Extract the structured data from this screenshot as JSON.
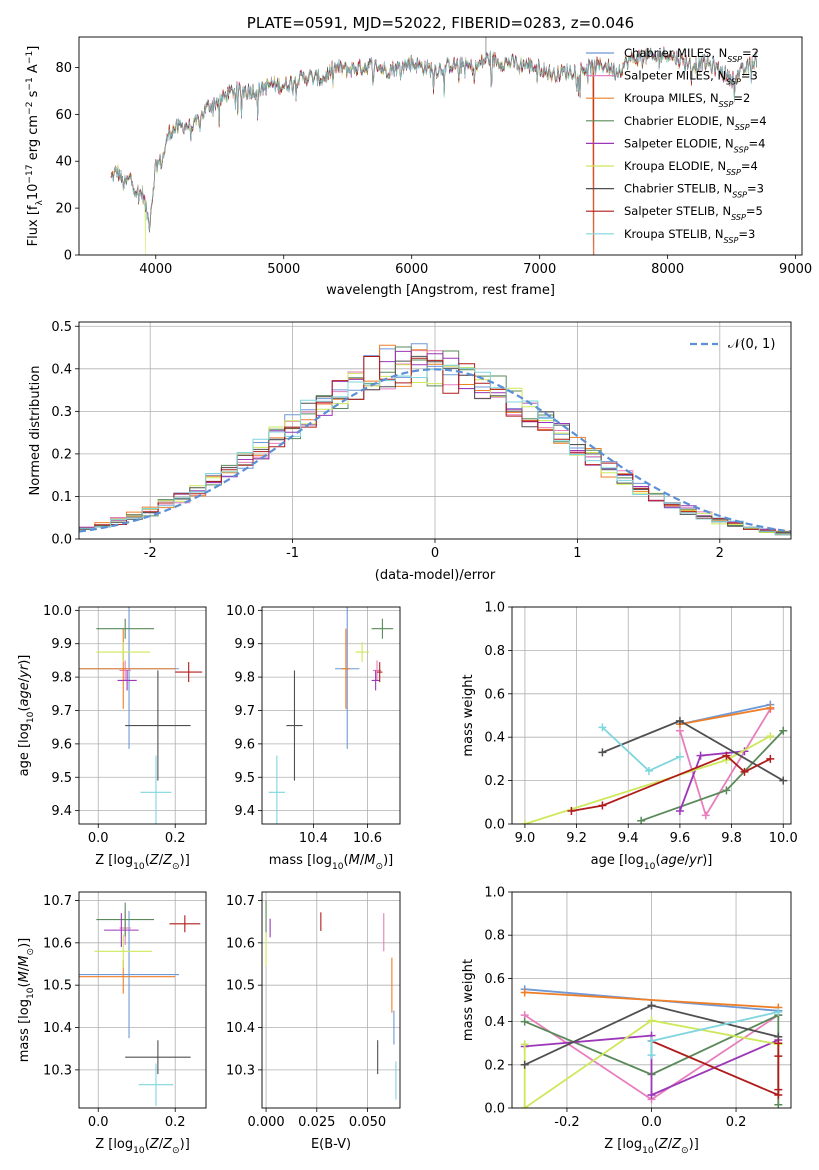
{
  "colors": {
    "Chabrier MILES": "#6f98d6",
    "Salpeter MILES": "#e87fbd",
    "Kroupa MILES": "#ee7f27",
    "Chabrier ELODIE": "#5a8a5a",
    "Salpeter ELODIE": "#9b37b8",
    "Kroupa ELODIE": "#cde85a",
    "Chabrier STELIB": "#505050",
    "Salpeter STELIB": "#b01c1c",
    "Kroupa STELIB": "#7fd6de",
    "gaussian": "#5b8fd6",
    "grid": "#b0b0b0"
  },
  "chart_data": [
    {
      "id": "spectrum",
      "type": "line",
      "title": "PLATE=0591, MJD=52022, FIBERID=0283, z=0.046",
      "xlabel": "wavelength [Angstrom, rest frame]",
      "ylabel": "Flux [f_λ 10^-17 erg cm^-2 s^-1 A^-1]",
      "xlim": [
        3400,
        9050
      ],
      "ylim": [
        0,
        93
      ],
      "xticks": [
        4000,
        5000,
        6000,
        7000,
        8000,
        9000
      ],
      "yticks": [
        0,
        20,
        40,
        60,
        80
      ],
      "grid": false,
      "legend_position": "top-right",
      "legend": [
        "Chabrier MILES, N_SSP=2",
        "Salpeter MILES, N_SSP=3",
        "Kroupa MILES, N_SSP=2",
        "Chabrier ELODIE, N_SSP=4",
        "Salpeter ELODIE, N_SSP=4",
        "Kroupa ELODIE, N_SSP=4",
        "Chabrier STELIB, N_SSP=3",
        "Salpeter STELIB, N_SSP=5",
        "Kroupa STELIB, N_SSP=3"
      ],
      "envelope": {
        "x": [
          3650,
          3700,
          3750,
          3800,
          3850,
          3900,
          3950,
          4000,
          4050,
          4100,
          4150,
          4200,
          4300,
          4400,
          4500,
          4600,
          4700,
          4800,
          4900,
          5000,
          5100,
          5200,
          5300,
          5400,
          5500,
          5600,
          5700,
          5800,
          5900,
          6000,
          6100,
          6200,
          6300,
          6400,
          6500,
          6600,
          6700,
          6800,
          6900,
          7000,
          7100,
          7200,
          7300,
          7400,
          7500,
          7600,
          7700,
          7800,
          7900,
          8000,
          8100,
          8200,
          8300,
          8400,
          8500,
          8600,
          8700
        ],
        "y": [
          33,
          36,
          30,
          33,
          27,
          26,
          13,
          39,
          40,
          52,
          54,
          55,
          55,
          63,
          66,
          70,
          70,
          70,
          73,
          72,
          75,
          76,
          75,
          80,
          79,
          80,
          81,
          79,
          80,
          82,
          80,
          79,
          81,
          81,
          80,
          84,
          82,
          82,
          81,
          80,
          77,
          78,
          79,
          80,
          81,
          78,
          83,
          85,
          84,
          86,
          83,
          81,
          82,
          79,
          75,
          79,
          84
        ]
      },
      "drops": [
        {
          "name": "Kroupa ELODIE",
          "x": 3920
        },
        {
          "name": "Kroupa ELODIE",
          "x": 6780
        },
        {
          "name": "Kroupa MILES",
          "x": 7420
        },
        {
          "name": "Salpeter STELIB",
          "x": 7425
        }
      ],
      "spike": {
        "x": 6580,
        "y": 93
      }
    },
    {
      "id": "residuals",
      "type": "area",
      "xlabel": "(data-model)/error",
      "ylabel": "Normed distribution",
      "xlim": [
        -2.5,
        2.5
      ],
      "ylim": [
        0,
        0.51
      ],
      "xticks": [
        -2,
        -1,
        0,
        1,
        2
      ],
      "yticks": [
        0.0,
        0.1,
        0.2,
        0.3,
        0.4,
        0.5
      ],
      "grid": true,
      "legend_position": "top-right",
      "legend": [
        "𝒩(0, 1)"
      ],
      "gaussian": {
        "mean": 0,
        "sigma": 1
      }
    },
    {
      "id": "age_vs_Z",
      "type": "scatter",
      "xlabel": "Z [log10(Z/Z☉)]",
      "ylabel": "age  [log10(age/yr)]",
      "xlim": [
        -0.05,
        0.28
      ],
      "ylim": [
        9.36,
        10.01
      ],
      "xticks": [
        0.0,
        0.2
      ],
      "yticks": [
        9.4,
        9.5,
        9.6,
        9.7,
        9.8,
        9.9,
        10.0
      ],
      "grid": true,
      "points": [
        {
          "name": "Chabrier MILES",
          "x": 0.08,
          "y": 9.825,
          "xerr": 0.13,
          "yerr": 0.24
        },
        {
          "name": "Salpeter MILES",
          "x": 0.07,
          "y": 9.82,
          "xerr": 0.015,
          "yerr": 0.03
        },
        {
          "name": "Kroupa MILES",
          "x": 0.065,
          "y": 9.825,
          "xerr": 0.135,
          "yerr": 0.12
        },
        {
          "name": "Chabrier ELODIE",
          "x": 0.07,
          "y": 9.945,
          "xerr": 0.075,
          "yerr": 0.03
        },
        {
          "name": "Salpeter ELODIE",
          "x": 0.075,
          "y": 9.79,
          "xerr": 0.025,
          "yerr": 0.03
        },
        {
          "name": "Kroupa ELODIE",
          "x": 0.065,
          "y": 9.875,
          "xerr": 0.07,
          "yerr": 0.03
        },
        {
          "name": "Chabrier STELIB",
          "x": 0.155,
          "y": 9.655,
          "xerr": 0.085,
          "yerr": 0.165
        },
        {
          "name": "Salpeter STELIB",
          "x": 0.235,
          "y": 9.815,
          "xerr": 0.035,
          "yerr": 0.03
        },
        {
          "name": "Kroupa STELIB",
          "x": 0.15,
          "y": 9.455,
          "xerr": 0.04,
          "yerr": 0.11
        }
      ]
    },
    {
      "id": "age_vs_mass",
      "type": "scatter",
      "xlabel": "mass [log10(M/M☉)]",
      "ylabel": "",
      "xlim": [
        10.21,
        10.72
      ],
      "ylim": [
        9.36,
        10.01
      ],
      "xticks": [
        10.4,
        10.6
      ],
      "yticks": [
        9.4,
        9.5,
        9.6,
        9.7,
        9.8,
        9.9,
        10.0
      ],
      "grid": true,
      "points": [
        {
          "name": "Chabrier MILES",
          "x": 10.525,
          "y": 9.825,
          "xerr": 0.045,
          "yerr": 0.24
        },
        {
          "name": "Salpeter MILES",
          "x": 10.635,
          "y": 9.82,
          "xerr": 0.015,
          "yerr": 0.03
        },
        {
          "name": "Kroupa MILES",
          "x": 10.52,
          "y": 9.825,
          "xerr": 0.015,
          "yerr": 0.12
        },
        {
          "name": "Chabrier ELODIE",
          "x": 10.655,
          "y": 9.945,
          "xerr": 0.04,
          "yerr": 0.03
        },
        {
          "name": "Salpeter ELODIE",
          "x": 10.63,
          "y": 9.79,
          "xerr": 0.015,
          "yerr": 0.03
        },
        {
          "name": "Kroupa ELODIE",
          "x": 10.58,
          "y": 9.875,
          "xerr": 0.025,
          "yerr": 0.03
        },
        {
          "name": "Chabrier STELIB",
          "x": 10.33,
          "y": 9.655,
          "xerr": 0.03,
          "yerr": 0.165
        },
        {
          "name": "Salpeter STELIB",
          "x": 10.645,
          "y": 9.815,
          "xerr": 0.01,
          "yerr": 0.03
        },
        {
          "name": "Kroupa STELIB",
          "x": 10.265,
          "y": 9.455,
          "xerr": 0.03,
          "yerr": 0.11
        }
      ]
    },
    {
      "id": "massweight_vs_age",
      "type": "line",
      "xlabel": "age  [log10(age/yr)]",
      "ylabel": "mass weight",
      "xlim": [
        8.95,
        10.03
      ],
      "ylim": [
        0,
        1.0
      ],
      "xticks": [
        9.0,
        9.2,
        9.4,
        9.6,
        9.8,
        10.0
      ],
      "yticks": [
        0.0,
        0.2,
        0.4,
        0.6,
        0.8,
        1.0
      ],
      "grid": true,
      "series": [
        {
          "name": "Chabrier MILES",
          "x": [
            9.6,
            9.95
          ],
          "y": [
            0.46,
            0.55
          ]
        },
        {
          "name": "Salpeter MILES",
          "x": [
            9.6,
            9.7,
            9.95
          ],
          "y": [
            0.43,
            0.04,
            0.53
          ]
        },
        {
          "name": "Kroupa MILES",
          "x": [
            9.6,
            9.95
          ],
          "y": [
            0.46,
            0.535
          ]
        },
        {
          "name": "Chabrier ELODIE",
          "x": [
            9.45,
            9.78,
            10.0
          ],
          "y": [
            0.015,
            0.155,
            0.43
          ]
        },
        {
          "name": "Salpeter ELODIE",
          "x": [
            9.6,
            9.68,
            9.85
          ],
          "y": [
            0.06,
            0.315,
            0.335
          ]
        },
        {
          "name": "Kroupa ELODIE",
          "x": [
            9.0,
            9.78,
            9.95
          ],
          "y": [
            0.0,
            0.295,
            0.405
          ]
        },
        {
          "name": "Chabrier STELIB",
          "x": [
            9.3,
            9.6,
            10.0
          ],
          "y": [
            0.33,
            0.475,
            0.2
          ]
        },
        {
          "name": "Salpeter STELIB",
          "x": [
            9.18,
            9.3,
            9.78,
            9.85,
            9.95
          ],
          "y": [
            0.06,
            0.085,
            0.315,
            0.24,
            0.3
          ]
        },
        {
          "name": "Kroupa STELIB",
          "x": [
            9.3,
            9.48,
            9.6
          ],
          "y": [
            0.445,
            0.245,
            0.31
          ]
        }
      ]
    },
    {
      "id": "mass_vs_Z",
      "type": "scatter",
      "xlabel": "Z [log10(Z/Z☉)]",
      "ylabel": "mass [log10(M/M☉)]",
      "xlim": [
        -0.05,
        0.28
      ],
      "ylim": [
        10.21,
        10.72
      ],
      "xticks": [
        0.0,
        0.2
      ],
      "yticks": [
        10.3,
        10.4,
        10.5,
        10.6,
        10.7
      ],
      "grid": true,
      "points": [
        {
          "name": "Chabrier MILES",
          "x": 0.08,
          "y": 10.525,
          "xerr": 0.13,
          "yerr": 0.15
        },
        {
          "name": "Salpeter MILES",
          "x": 0.07,
          "y": 10.635,
          "xerr": 0.015,
          "yerr": 0.04
        },
        {
          "name": "Kroupa MILES",
          "x": 0.065,
          "y": 10.52,
          "xerr": 0.135,
          "yerr": 0.04
        },
        {
          "name": "Chabrier ELODIE",
          "x": 0.07,
          "y": 10.655,
          "xerr": 0.075,
          "yerr": 0.04
        },
        {
          "name": "Salpeter ELODIE",
          "x": 0.06,
          "y": 10.63,
          "xerr": 0.045,
          "yerr": 0.04
        },
        {
          "name": "Kroupa ELODIE",
          "x": 0.065,
          "y": 10.58,
          "xerr": 0.075,
          "yerr": 0.04
        },
        {
          "name": "Chabrier STELIB",
          "x": 0.155,
          "y": 10.33,
          "xerr": 0.085,
          "yerr": 0.04
        },
        {
          "name": "Salpeter STELIB",
          "x": 0.225,
          "y": 10.645,
          "xerr": 0.04,
          "yerr": 0.02
        },
        {
          "name": "Kroupa STELIB",
          "x": 0.15,
          "y": 10.265,
          "xerr": 0.045,
          "yerr": 0.05
        }
      ]
    },
    {
      "id": "mass_vs_ebv",
      "type": "scatter",
      "xlabel": "E(B-V)",
      "ylabel": "",
      "xlim": [
        -0.002,
        0.066
      ],
      "ylim": [
        10.21,
        10.72
      ],
      "xticks": [
        0.0,
        0.025,
        0.05
      ],
      "yticks": [
        10.3,
        10.4,
        10.5,
        10.6,
        10.7
      ],
      "grid": true,
      "points": [
        {
          "name": "Chabrier MILES",
          "x": 0.063,
          "y": 10.4,
          "xerr": 0,
          "yerr": 0.04
        },
        {
          "name": "Salpeter MILES",
          "x": 0.058,
          "y": 10.625,
          "xerr": 0,
          "yerr": 0.045
        },
        {
          "name": "Kroupa MILES",
          "x": 0.062,
          "y": 10.5,
          "xerr": 0,
          "yerr": 0.065
        },
        {
          "name": "Chabrier ELODIE",
          "x": 0.0,
          "y": 10.66,
          "xerr": 0,
          "yerr": 0.04
        },
        {
          "name": "Salpeter ELODIE",
          "x": 0.002,
          "y": 10.635,
          "xerr": 0,
          "yerr": 0.022
        },
        {
          "name": "Kroupa ELODIE",
          "x": 0.0,
          "y": 10.585,
          "xerr": 0,
          "yerr": 0.04
        },
        {
          "name": "Chabrier STELIB",
          "x": 0.055,
          "y": 10.33,
          "xerr": 0,
          "yerr": 0.04
        },
        {
          "name": "Salpeter STELIB",
          "x": 0.027,
          "y": 10.65,
          "xerr": 0,
          "yerr": 0.022
        },
        {
          "name": "Kroupa STELIB",
          "x": 0.064,
          "y": 10.275,
          "xerr": 0,
          "yerr": 0.045
        }
      ]
    },
    {
      "id": "massweight_vs_Z",
      "type": "line",
      "xlabel": "Z [log10(Z/Z☉)]",
      "ylabel": "mass weight",
      "xlim": [
        -0.33,
        0.33
      ],
      "ylim": [
        0,
        1.0
      ],
      "xticks": [
        -0.2,
        0.0,
        0.2
      ],
      "yticks": [
        0.0,
        0.2,
        0.4,
        0.6,
        0.8,
        1.0
      ],
      "grid": true,
      "series": [
        {
          "name": "Chabrier MILES",
          "x": [
            -0.3,
            0.3
          ],
          "y": [
            0.55,
            0.45
          ]
        },
        {
          "name": "Salpeter MILES",
          "x": [
            -0.3,
            0.0,
            0.3
          ],
          "y": [
            0.43,
            0.04,
            0.43
          ]
        },
        {
          "name": "Kroupa MILES",
          "x": [
            -0.3,
            0.3
          ],
          "y": [
            0.535,
            0.465
          ]
        },
        {
          "name": "Chabrier ELODIE",
          "x": [
            -0.3,
            0.0,
            0.3,
            0.3
          ],
          "y": [
            0.4,
            0.155,
            0.43,
            0.015
          ]
        },
        {
          "name": "Salpeter ELODIE",
          "x": [
            -0.3,
            0.0,
            0.0,
            0.3
          ],
          "y": [
            0.285,
            0.335,
            0.06,
            0.315
          ]
        },
        {
          "name": "Kroupa ELODIE",
          "x": [
            -0.3,
            -0.3,
            0.0,
            0.3
          ],
          "y": [
            0.295,
            0.0,
            0.405,
            0.295
          ]
        },
        {
          "name": "Chabrier STELIB",
          "x": [
            -0.3,
            0.0,
            0.3
          ],
          "y": [
            0.2,
            0.475,
            0.33
          ]
        },
        {
          "name": "Salpeter STELIB",
          "x": [
            0.0,
            0.3,
            0.3,
            0.3,
            0.3
          ],
          "y": [
            0.31,
            0.06,
            0.085,
            0.24,
            0.3
          ]
        },
        {
          "name": "Kroupa STELIB",
          "x": [
            0.0,
            0.0,
            0.3
          ],
          "y": [
            0.245,
            0.31,
            0.445
          ]
        }
      ]
    }
  ]
}
